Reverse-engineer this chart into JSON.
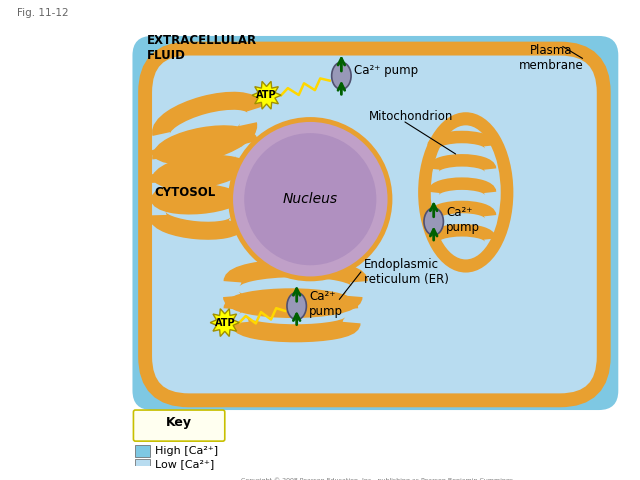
{
  "fig_label": "Fig. 11-12",
  "extracellular_label": "EXTRACELLULAR\nFLUID",
  "cytosol_label": "CYTOSOL",
  "nucleus_label": "Nucleus",
  "mitochondrion_label": "Mitochondrion",
  "plasma_membrane_label": "Plasma\nmembrane",
  "endoplasmic_reticulum_label": "Endoplasmic\nreticulum (ER)",
  "ca_pump_label1": "Ca²⁺ pump",
  "ca_pump_label2": "Ca²⁺\npump",
  "ca_pump_label3": "Ca²⁺\npump",
  "atp_label": "ATP",
  "key_label": "Key",
  "high_ca_label": "High [Ca²⁺]",
  "low_ca_label": "Low [Ca²⁺]",
  "copyright_label": "Copyright © 2008 Pearson Education, Inc., publishing as Pearson Benjamin Cummings.",
  "bg_color": "#7EC8E3",
  "cell_inner_color": "#B8DCF0",
  "cell_outer_color": "#E8A030",
  "er_color": "#E8A030",
  "nucleus_outer_color": "#C0A0C8",
  "nucleus_inner_color": "#B090C0",
  "mito_color": "#E8A030",
  "pump_color": "#9898B8",
  "arrow_color": "#006000",
  "atp_color": "#FFFF00",
  "key_bg_color": "#FFFFF0",
  "key_border_color": "#C8C000",
  "text_color": "#000000"
}
